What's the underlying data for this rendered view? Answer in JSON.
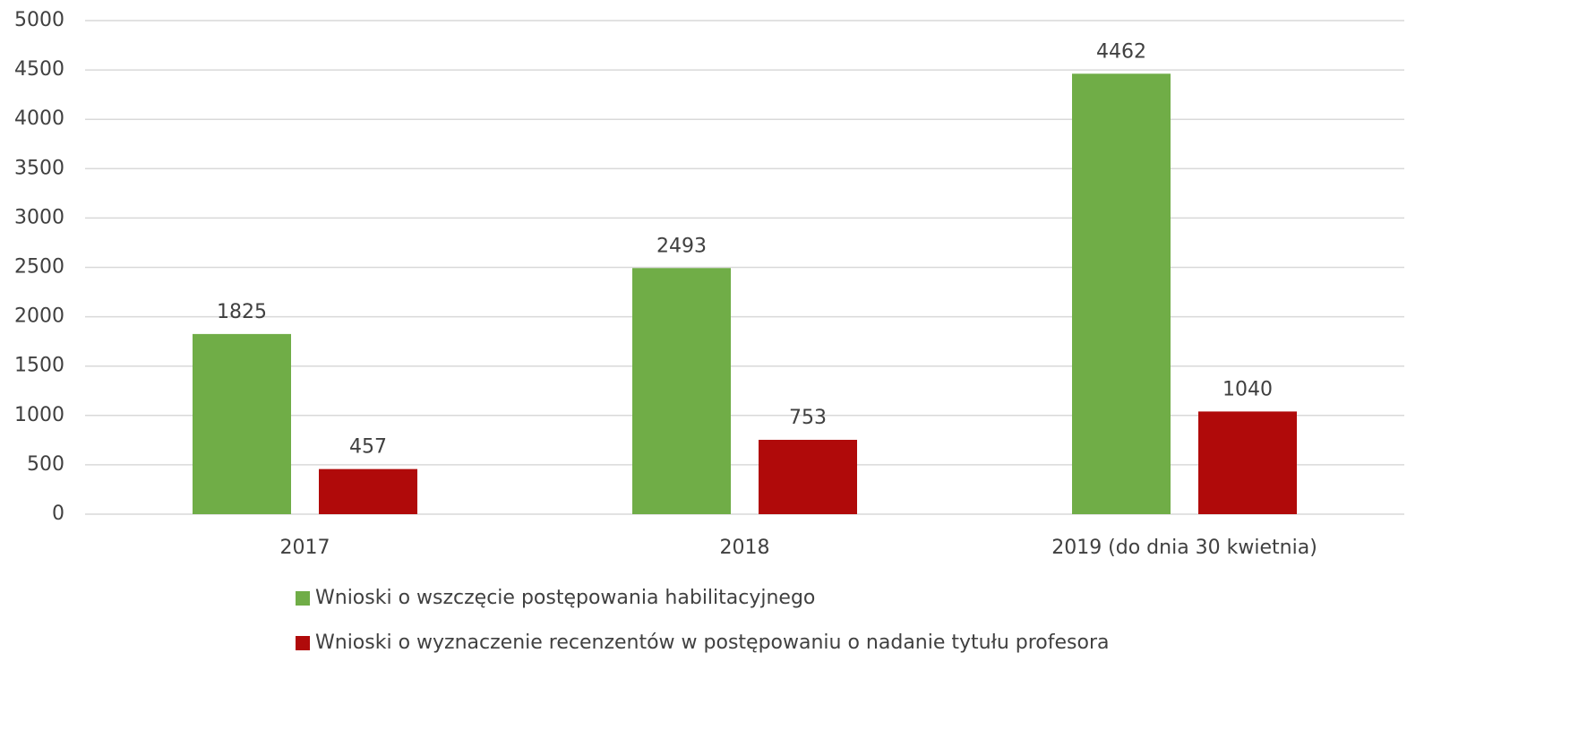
{
  "chart_data": {
    "type": "bar",
    "categories": [
      "2017",
      "2018",
      "2019 (do dnia 30 kwietnia)"
    ],
    "series": [
      {
        "name": "Wnioski o wszczęcie postępowania habilitacyjnego",
        "color": "#70ad47",
        "values": [
          1825,
          2493,
          4462
        ]
      },
      {
        "name": "Wnioski o wyznaczenie recenzentów w postępowaniu o nadanie tytułu profesora",
        "color": "#b00a0a",
        "values": [
          457,
          753,
          1040
        ]
      }
    ],
    "ylim": [
      0,
      5000
    ],
    "yticks": [
      0,
      500,
      1000,
      1500,
      2000,
      2500,
      3000,
      3500,
      4000,
      4500,
      5000
    ],
    "grid": true,
    "legend": "bottom"
  }
}
